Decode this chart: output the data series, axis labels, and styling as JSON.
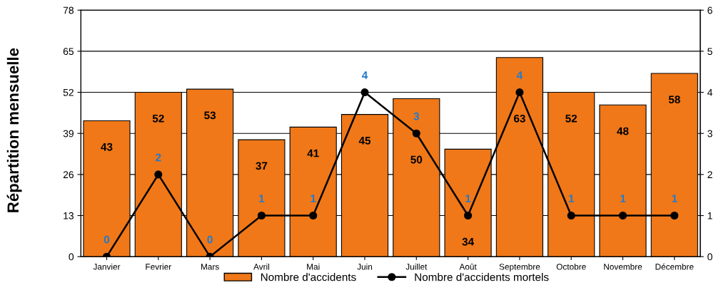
{
  "chart_data": {
    "type": "bar",
    "ylabel": "Répartition mensuelle",
    "categories": [
      "Janvier",
      "Fevrier",
      "Mars",
      "Avril",
      "Mai",
      "Juin",
      "Juillet",
      "Août",
      "Septembre",
      "Octobre",
      "Novembre",
      "Décembre"
    ],
    "series": [
      {
        "name": "Nombre d'accidents",
        "color": "#f07818",
        "values": [
          43,
          52,
          53,
          37,
          41,
          45,
          50,
          34,
          63,
          52,
          48,
          58
        ]
      },
      {
        "name": "Nombre d'accidents mortels",
        "type": "line",
        "axis": "y2",
        "color": "#000000",
        "marker": "circle",
        "values": [
          0,
          2,
          0,
          1,
          1,
          4,
          3,
          1,
          4,
          1,
          1,
          1
        ]
      }
    ],
    "ylim": [
      0,
      78
    ],
    "yticks": [
      0,
      13,
      26,
      39,
      52,
      65,
      78
    ],
    "y2lim": [
      0,
      6
    ],
    "y2ticks": [
      0,
      1,
      2,
      3,
      4,
      5,
      6
    ],
    "grid": "y",
    "legend": "bottom",
    "data_labels": true
  }
}
